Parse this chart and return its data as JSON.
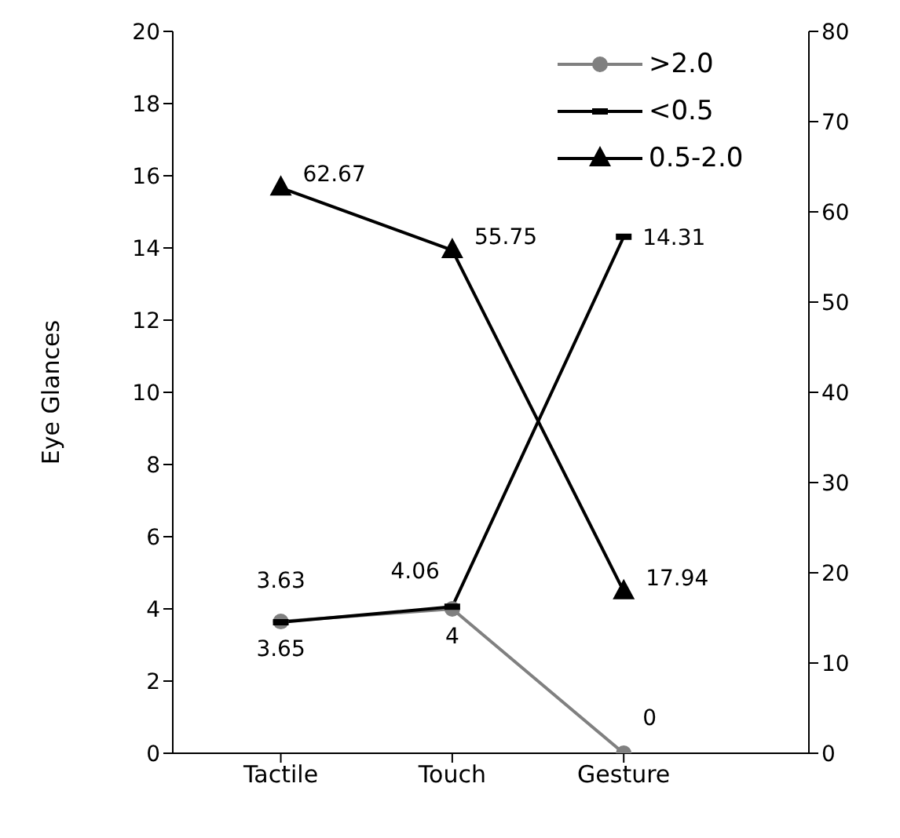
{
  "chart_data": {
    "type": "line",
    "ylabel": "Eye Glances",
    "categories": [
      "Tactile",
      "Touch",
      "Gesture"
    ],
    "series": [
      {
        "name": ">2.0",
        "color": "#808080",
        "marker": "circle",
        "values": [
          3.65,
          4,
          0
        ]
      },
      {
        "name": "<0.5",
        "color": "#000000",
        "marker": "square",
        "values": [
          3.63,
          4.06,
          14.31
        ]
      },
      {
        "name": "0.5-2.0",
        "color": "#000000",
        "marker": "triangle",
        "axis": "y2",
        "values": [
          62.67,
          55.75,
          17.94
        ]
      }
    ],
    "ylim": [
      0,
      20
    ],
    "yticks": [
      0,
      2,
      4,
      6,
      8,
      10,
      12,
      14,
      16,
      18,
      20
    ],
    "y2lim": [
      0,
      80
    ],
    "y2ticks": [
      0,
      10,
      20,
      30,
      40,
      50,
      60,
      70,
      80
    ],
    "data_labels": true,
    "grid": false,
    "legend": "top right",
    "line_style": "solid"
  }
}
